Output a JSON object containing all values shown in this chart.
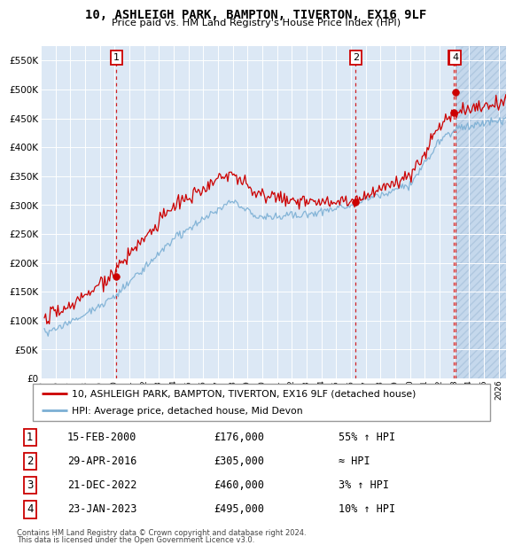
{
  "title": "10, ASHLEIGH PARK, BAMPTON, TIVERTON, EX16 9LF",
  "subtitle": "Price paid vs. HM Land Registry's House Price Index (HPI)",
  "legend_line1": "10, ASHLEIGH PARK, BAMPTON, TIVERTON, EX16 9LF (detached house)",
  "legend_line2": "HPI: Average price, detached house, Mid Devon",
  "footer1": "Contains HM Land Registry data © Crown copyright and database right 2024.",
  "footer2": "This data is licensed under the Open Government Licence v3.0.",
  "sale_color": "#cc0000",
  "hpi_color": "#7bafd4",
  "background_chart": "#dce8f5",
  "grid_color": "#ffffff",
  "ylim": [
    0,
    575000
  ],
  "ytick_vals": [
    0,
    50000,
    100000,
    150000,
    200000,
    250000,
    300000,
    350000,
    400000,
    450000,
    500000,
    550000
  ],
  "ytick_labels": [
    "£0",
    "£50K",
    "£100K",
    "£150K",
    "£200K",
    "£250K",
    "£300K",
    "£350K",
    "£400K",
    "£450K",
    "£500K",
    "£550K"
  ],
  "xlim_start": 1995.25,
  "xlim_end": 2026.5,
  "xticks": [
    1995,
    1996,
    1997,
    1998,
    1999,
    2000,
    2001,
    2002,
    2003,
    2004,
    2005,
    2006,
    2007,
    2008,
    2009,
    2010,
    2011,
    2012,
    2013,
    2014,
    2015,
    2016,
    2017,
    2018,
    2019,
    2020,
    2021,
    2022,
    2023,
    2024,
    2025,
    2026
  ],
  "hatch_start": 2023.08,
  "sales": [
    {
      "num": 1,
      "date_label": "15-FEB-2000",
      "price": 176000,
      "year": 2000.12,
      "info": "55% ↑ HPI"
    },
    {
      "num": 2,
      "date_label": "29-APR-2016",
      "price": 305000,
      "year": 2016.33,
      "info": "≈ HPI"
    },
    {
      "num": 3,
      "date_label": "21-DEC-2022",
      "price": 460000,
      "year": 2022.97,
      "info": "3% ↑ HPI"
    },
    {
      "num": 4,
      "date_label": "23-JAN-2023",
      "price": 495000,
      "year": 2023.06,
      "info": "10% ↑ HPI"
    }
  ],
  "row_labels": [
    "1",
    "2",
    "3",
    "4"
  ],
  "row_dates": [
    "15-FEB-2000",
    "29-APR-2016",
    "21-DEC-2022",
    "23-JAN-2023"
  ],
  "row_prices": [
    "£176,000",
    "£305,000",
    "£460,000",
    "£495,000"
  ],
  "row_info": [
    "55% ↑ HPI",
    "≈ HPI",
    "3% ↑ HPI",
    "10% ↑ HPI"
  ]
}
